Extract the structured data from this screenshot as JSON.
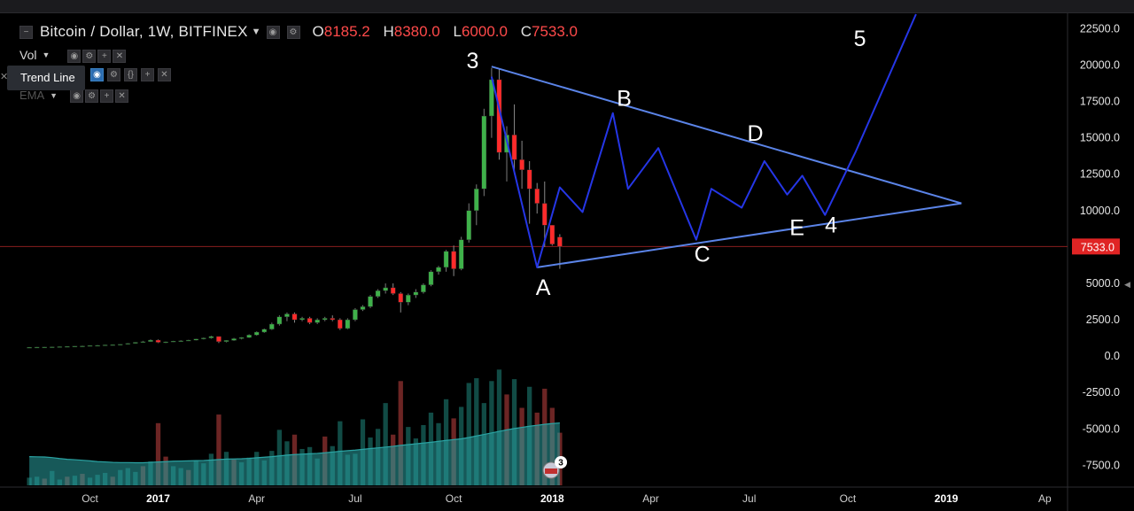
{
  "header": {
    "symbol": "Bitcoin / Dollar, 1W, BITFINEX",
    "ohlc": [
      {
        "k": "O",
        "v": "8185.2"
      },
      {
        "k": "H",
        "v": "8380.0"
      },
      {
        "k": "L",
        "v": "6000.0"
      },
      {
        "k": "C",
        "v": "7533.0"
      }
    ]
  },
  "indicators": {
    "vol_label": "Vol",
    "ema_label": "EMA",
    "tooltip": "Trend Line"
  },
  "colors": {
    "up": "#26a69a",
    "down": "#ef5350",
    "candle_up": "#3fb14a",
    "candle_down": "#ff2b2b",
    "drawing": "#2536e6",
    "trendline": "#5b84e8",
    "price_line": "#8a1e1e",
    "price_tag": "#e02424",
    "vol_ma": "#2aa3a3"
  },
  "chart_data": {
    "type": "candlestick",
    "ylim": [
      -9000,
      23500
    ],
    "y_ticks": [
      "22500.0",
      "20000.0",
      "17500.0",
      "15000.0",
      "12500.0",
      "10000.0",
      "7500.0",
      "5000.0",
      "2500.0",
      "0.0",
      "-2500.0",
      "-5000.0",
      "-7500.0"
    ],
    "last_price_tag": "7533.0",
    "last_price": 7533,
    "x_ticks": [
      {
        "label": "Oct",
        "t": 8.0
      },
      {
        "label": "2017",
        "t": 17.0
      },
      {
        "label": "Apr",
        "t": 30.0
      },
      {
        "label": "Jul",
        "t": 43.0
      },
      {
        "label": "Oct",
        "t": 56.0
      },
      {
        "label": "2018",
        "t": 69.0
      },
      {
        "label": "Apr",
        "t": 82.0
      },
      {
        "label": "Jul",
        "t": 95.0
      },
      {
        "label": "Oct",
        "t": 108.0
      },
      {
        "label": "2019",
        "t": 121.0
      },
      {
        "label": "Ap",
        "t": 134.0
      }
    ],
    "candles": [
      [
        600,
        620,
        580,
        610
      ],
      [
        610,
        630,
        590,
        620
      ],
      [
        620,
        640,
        600,
        625
      ],
      [
        625,
        650,
        610,
        640
      ],
      [
        640,
        660,
        620,
        650
      ],
      [
        650,
        680,
        630,
        670
      ],
      [
        670,
        700,
        650,
        690
      ],
      [
        690,
        720,
        670,
        700
      ],
      [
        700,
        740,
        680,
        730
      ],
      [
        730,
        760,
        700,
        740
      ],
      [
        740,
        780,
        720,
        770
      ],
      [
        770,
        800,
        740,
        780
      ],
      [
        780,
        830,
        760,
        820
      ],
      [
        820,
        900,
        800,
        880
      ],
      [
        880,
        960,
        860,
        950
      ],
      [
        950,
        1050,
        920,
        1000
      ],
      [
        1000,
        1150,
        980,
        1100
      ],
      [
        1100,
        1150,
        900,
        950
      ],
      [
        950,
        1000,
        900,
        980
      ],
      [
        980,
        1050,
        950,
        1030
      ],
      [
        1030,
        1100,
        1000,
        1060
      ],
      [
        1060,
        1120,
        1040,
        1100
      ],
      [
        1100,
        1200,
        1080,
        1180
      ],
      [
        1180,
        1280,
        1150,
        1250
      ],
      [
        1250,
        1400,
        1200,
        1350
      ],
      [
        1350,
        1300,
        900,
        1000
      ],
      [
        1000,
        1100,
        950,
        1080
      ],
      [
        1080,
        1250,
        1050,
        1200
      ],
      [
        1200,
        1300,
        1150,
        1280
      ],
      [
        1280,
        1500,
        1250,
        1450
      ],
      [
        1450,
        1700,
        1400,
        1650
      ],
      [
        1650,
        1900,
        1600,
        1850
      ],
      [
        1850,
        2300,
        1800,
        2200
      ],
      [
        2200,
        2800,
        2100,
        2700
      ],
      [
        2700,
        3000,
        2400,
        2900
      ],
      [
        2900,
        3000,
        2300,
        2500
      ],
      [
        2500,
        2700,
        2400,
        2600
      ],
      [
        2600,
        2700,
        2200,
        2300
      ],
      [
        2300,
        2600,
        2200,
        2500
      ],
      [
        2500,
        2700,
        2400,
        2600
      ],
      [
        2600,
        2800,
        2400,
        2500
      ],
      [
        2500,
        2600,
        1800,
        1900
      ],
      [
        1900,
        2600,
        1850,
        2500
      ],
      [
        2500,
        3300,
        2400,
        3200
      ],
      [
        3200,
        3500,
        3100,
        3400
      ],
      [
        3400,
        4200,
        3300,
        4100
      ],
      [
        4100,
        4600,
        4000,
        4500
      ],
      [
        4500,
        5000,
        4300,
        4700
      ],
      [
        4700,
        5000,
        4200,
        4300
      ],
      [
        4300,
        4400,
        3000,
        3700
      ],
      [
        3700,
        4300,
        3500,
        4200
      ],
      [
        4200,
        4600,
        4000,
        4400
      ],
      [
        4400,
        5000,
        4300,
        4900
      ],
      [
        4900,
        5900,
        4800,
        5800
      ],
      [
        5800,
        6200,
        5600,
        6100
      ],
      [
        6100,
        7300,
        5800,
        7200
      ],
      [
        7200,
        7600,
        5500,
        6000
      ],
      [
        6000,
        8200,
        5900,
        8000
      ],
      [
        8000,
        10500,
        7800,
        10000
      ],
      [
        10000,
        11800,
        9000,
        11500
      ],
      [
        11500,
        17000,
        11000,
        16500
      ],
      [
        16500,
        19800,
        15000,
        19000
      ],
      [
        19000,
        19700,
        13500,
        14000
      ],
      [
        14000,
        15800,
        12000,
        15200
      ],
      [
        15200,
        17300,
        12500,
        13500
      ],
      [
        13500,
        14800,
        11500,
        12800
      ],
      [
        12800,
        13400,
        9100,
        11500
      ],
      [
        11500,
        11900,
        9800,
        10500
      ],
      [
        10500,
        12000,
        7500,
        9000
      ],
      [
        9000,
        9000,
        7600,
        7700
      ],
      [
        8185,
        8380,
        6000,
        7533
      ]
    ],
    "volumes": [
      [
        800,
        1
      ],
      [
        900,
        1
      ],
      [
        700,
        0
      ],
      [
        1500,
        1
      ],
      [
        600,
        1
      ],
      [
        900,
        0
      ],
      [
        1000,
        1
      ],
      [
        1200,
        0
      ],
      [
        800,
        1
      ],
      [
        1100,
        1
      ],
      [
        1300,
        1
      ],
      [
        900,
        0
      ],
      [
        1600,
        1
      ],
      [
        1800,
        1
      ],
      [
        1400,
        1
      ],
      [
        2000,
        0
      ],
      [
        2500,
        1
      ],
      [
        6500,
        0
      ],
      [
        3000,
        0
      ],
      [
        2000,
        1
      ],
      [
        1800,
        1
      ],
      [
        1600,
        0
      ],
      [
        2600,
        1
      ],
      [
        2300,
        1
      ],
      [
        3300,
        1
      ],
      [
        7400,
        0
      ],
      [
        3500,
        1
      ],
      [
        2700,
        0
      ],
      [
        2400,
        1
      ],
      [
        2900,
        1
      ],
      [
        3500,
        1
      ],
      [
        2600,
        1
      ],
      [
        3600,
        1
      ],
      [
        5800,
        1
      ],
      [
        4600,
        1
      ],
      [
        5300,
        0
      ],
      [
        3800,
        1
      ],
      [
        4000,
        1
      ],
      [
        2800,
        1
      ],
      [
        5100,
        0
      ],
      [
        4100,
        1
      ],
      [
        6700,
        1
      ],
      [
        3200,
        1
      ],
      [
        3300,
        1
      ],
      [
        6900,
        1
      ],
      [
        5000,
        1
      ],
      [
        5900,
        1
      ],
      [
        8600,
        1
      ],
      [
        5300,
        0
      ],
      [
        10900,
        0
      ],
      [
        6100,
        1
      ],
      [
        4900,
        1
      ],
      [
        6300,
        1
      ],
      [
        7600,
        1
      ],
      [
        6500,
        1
      ],
      [
        9000,
        1
      ],
      [
        7000,
        0
      ],
      [
        8200,
        1
      ],
      [
        10700,
        1
      ],
      [
        11200,
        1
      ],
      [
        8600,
        1
      ],
      [
        10900,
        1
      ],
      [
        12100,
        1
      ],
      [
        9500,
        0
      ],
      [
        11100,
        1
      ],
      [
        8100,
        0
      ],
      [
        10300,
        1
      ],
      [
        7600,
        0
      ],
      [
        10100,
        0
      ],
      [
        8100,
        0
      ],
      [
        5500,
        0
      ]
    ],
    "vol_ma": [
      3000,
      2980,
      2960,
      2900,
      2800,
      2720,
      2680,
      2620,
      2560,
      2480,
      2450,
      2400,
      2380,
      2380,
      2360,
      2360,
      2400,
      2440,
      2480,
      2520,
      2540,
      2560,
      2580,
      2600,
      2640,
      2700,
      2740,
      2760,
      2780,
      2820,
      2880,
      2940,
      3000,
      3080,
      3160,
      3220,
      3260,
      3300,
      3340,
      3400,
      3480,
      3560,
      3620,
      3680,
      3760,
      3840,
      3920,
      4000,
      4080,
      4180,
      4260,
      4340,
      4420,
      4500,
      4600,
      4700,
      4780,
      4860,
      5000,
      5160,
      5320,
      5480,
      5640,
      5800,
      5940,
      6060,
      6180,
      6280,
      6380,
      6460,
      6520
    ],
    "trendlines": [
      {
        "from": [
          61,
          19900
        ],
        "to": [
          123,
          10500
        ]
      },
      {
        "from": [
          67,
          6100
        ],
        "to": [
          123,
          10500
        ]
      }
    ],
    "wave_path": [
      [
        61,
        19200
      ],
      [
        67,
        6100
      ],
      [
        70,
        11600
      ],
      [
        73,
        9900
      ],
      [
        77,
        16700
      ],
      [
        79,
        11500
      ],
      [
        83,
        14300
      ],
      [
        88,
        8000
      ],
      [
        90,
        11500
      ],
      [
        94,
        10200
      ],
      [
        97,
        13400
      ],
      [
        100,
        11100
      ],
      [
        102,
        12400
      ],
      [
        105,
        9700
      ],
      [
        109,
        14000
      ],
      [
        117,
        23500
      ]
    ],
    "wave_labels": [
      {
        "text": "3",
        "t": 58.5,
        "y": 19800
      },
      {
        "text": "A",
        "t": 67.8,
        "y": 4200
      },
      {
        "text": "B",
        "t": 78.5,
        "y": 17200
      },
      {
        "text": "C",
        "t": 88.8,
        "y": 6500
      },
      {
        "text": "D",
        "t": 95.8,
        "y": 14800
      },
      {
        "text": "E",
        "t": 101.3,
        "y": 8300
      },
      {
        "text": "4",
        "t": 105.8,
        "y": 8500
      },
      {
        "text": "5",
        "t": 109.6,
        "y": 21300
      }
    ],
    "event_badge": {
      "count": "3",
      "t": 69.2
    }
  }
}
